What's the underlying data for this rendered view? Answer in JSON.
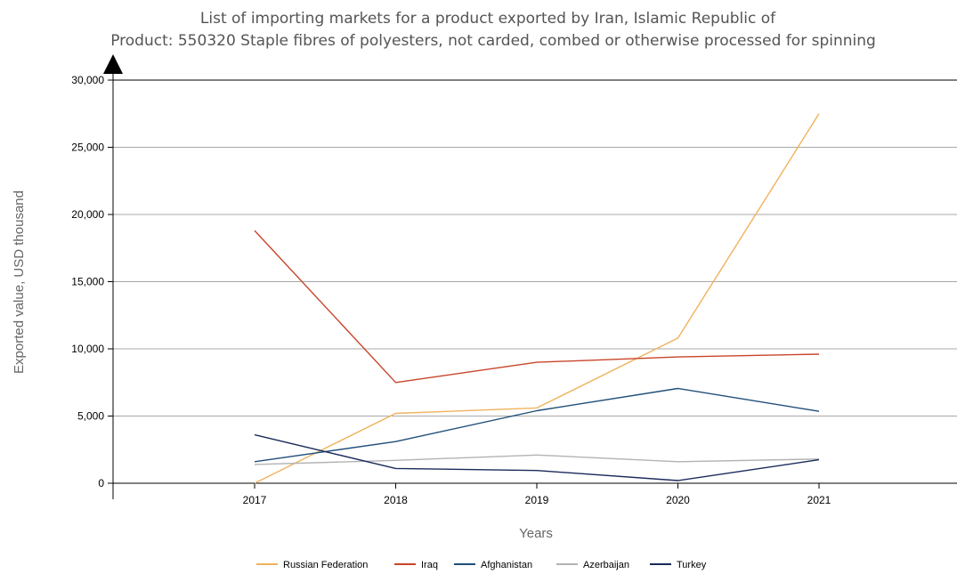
{
  "chart_data": {
    "type": "line",
    "title": "List of importing markets for a product exported by Iran, Islamic Republic of",
    "subtitle": "Product: 550320 Staple fibres of polyesters, not carded, combed or otherwise processed for spinning",
    "xlabel": "Years",
    "ylabel": "Exported value, USD thousand",
    "categories": [
      "2017",
      "2018",
      "2019",
      "2020",
      "2021"
    ],
    "ylim": [
      0,
      30000
    ],
    "yticks": [
      0,
      5000,
      10000,
      15000,
      20000,
      25000,
      30000
    ],
    "ytick_labels": [
      "0",
      "5,000",
      "10,000",
      "15,000",
      "20,000",
      "25,000",
      "30,000"
    ],
    "grid": "horizontal",
    "legend_position": "bottom",
    "series": [
      {
        "name": "Russian Federation",
        "color": "#f0b25c",
        "values": [
          0,
          5200,
          5600,
          10800,
          27500
        ]
      },
      {
        "name": "Iraq",
        "color": "#c8452a",
        "values": [
          18800,
          7500,
          9000,
          9400,
          9600
        ]
      },
      {
        "name": "Afghanistan",
        "color": "#1f4e79",
        "values": [
          1600,
          3100,
          5400,
          7050,
          5350
        ]
      },
      {
        "name": "Azerbaijan",
        "color": "#b3b3b3",
        "values": [
          1400,
          1700,
          2100,
          1600,
          1800
        ]
      },
      {
        "name": "Turkey",
        "color": "#1a2a5a",
        "values": [
          3600,
          1100,
          950,
          200,
          1750
        ]
      }
    ]
  }
}
